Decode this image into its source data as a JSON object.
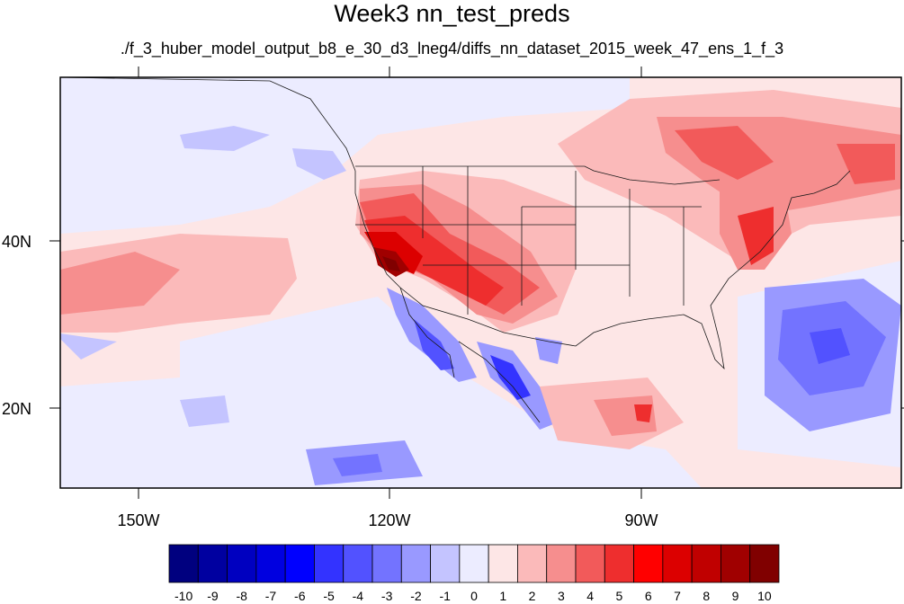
{
  "title": "Week3 nn_test_preds",
  "subtitle": "./f_3_huber_model_output_b8_e_30_d3_lneg4/diffs_nn_dataset_2015_week_47_ens_1_f_3",
  "lon_labels": [
    "150W",
    "120W",
    "90W"
  ],
  "lat_labels": [
    "40N",
    "20N"
  ],
  "colorbar": {
    "ticks": [
      "-10",
      "-9",
      "-8",
      "-7",
      "-6",
      "-5",
      "-4",
      "-3",
      "-2",
      "-1",
      "0",
      "1",
      "2",
      "3",
      "4",
      "5",
      "6",
      "7",
      "8",
      "9",
      "10"
    ],
    "colors": [
      "#00007f",
      "#0000a0",
      "#0000c0",
      "#0000e0",
      "#0000ff",
      "#3333ff",
      "#5252ff",
      "#7373ff",
      "#9999ff",
      "#c4c4ff",
      "#ececff",
      "#fde6e6",
      "#fbbaba",
      "#f68e8e",
      "#f25a5a",
      "#ee2e2e",
      "#ff0000",
      "#dc0000",
      "#c00000",
      "#a00000",
      "#800000"
    ]
  }
}
